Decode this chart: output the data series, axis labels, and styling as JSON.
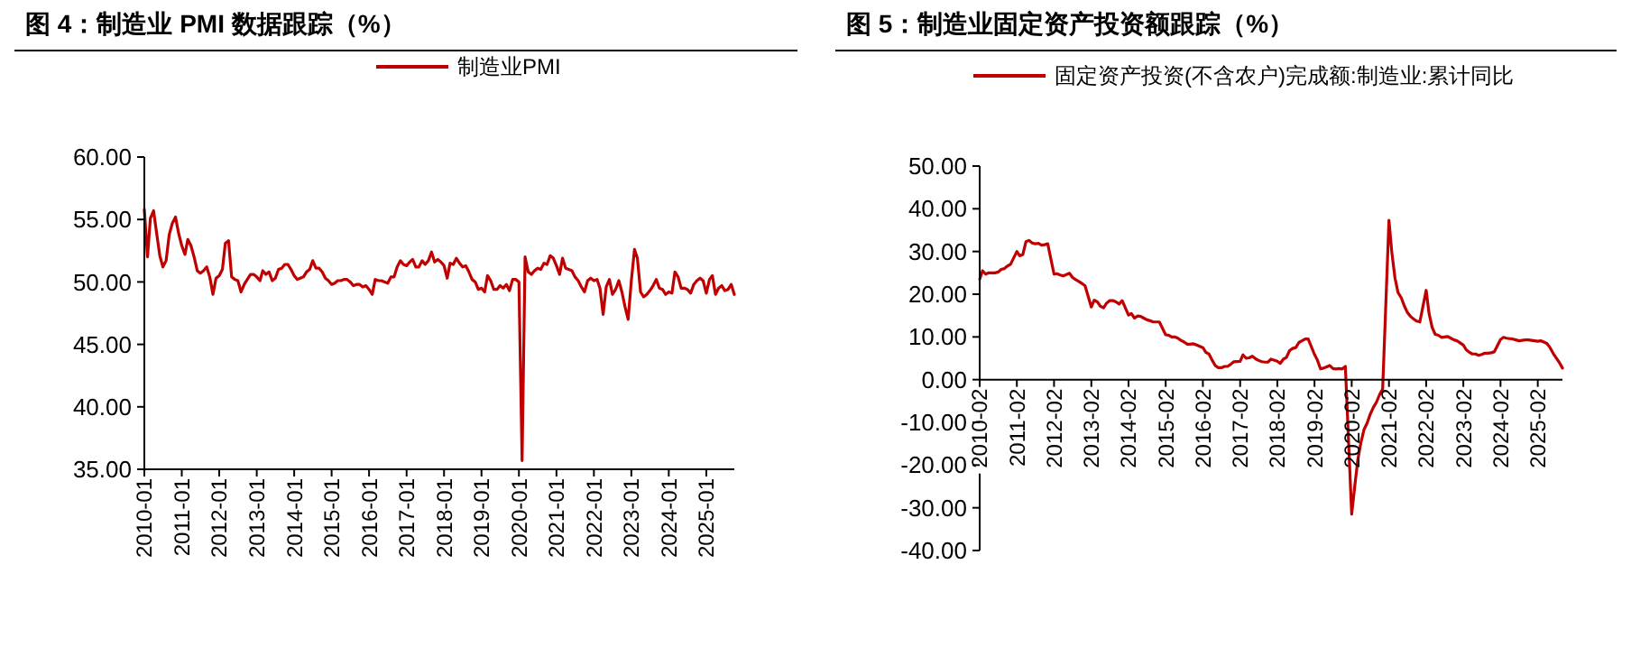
{
  "chart_data": [
    {
      "type": "line",
      "title": "图 4：制造业 PMI 数据跟踪（%）",
      "legend": "top",
      "grid": false,
      "xlim": [
        "2010-01",
        "2025-10"
      ],
      "ylim": [
        35,
        60
      ],
      "yticks": [
        {
          "value": 35,
          "label": "35.00"
        },
        {
          "value": 40,
          "label": "40.00"
        },
        {
          "value": 45,
          "label": "45.00"
        },
        {
          "value": 50,
          "label": "50.00"
        },
        {
          "value": 55,
          "label": "55.00"
        },
        {
          "value": 60,
          "label": "60.00"
        }
      ],
      "xticks": [
        "2010-01",
        "2011-01",
        "2012-01",
        "2013-01",
        "2014-01",
        "2015-01",
        "2016-01",
        "2017-01",
        "2018-01",
        "2019-01",
        "2020-01",
        "2021-01",
        "2022-01",
        "2023-01",
        "2024-01",
        "2025-01"
      ],
      "x": [
        "2010-01",
        "2010-02",
        "2010-03",
        "2010-04",
        "2010-05",
        "2010-06",
        "2010-07",
        "2010-08",
        "2010-09",
        "2010-10",
        "2010-11",
        "2010-12",
        "2011-01",
        "2011-02",
        "2011-03",
        "2011-04",
        "2011-05",
        "2011-06",
        "2011-07",
        "2011-08",
        "2011-09",
        "2011-10",
        "2011-11",
        "2011-12",
        "2012-01",
        "2012-02",
        "2012-03",
        "2012-04",
        "2012-05",
        "2012-06",
        "2012-07",
        "2012-08",
        "2012-09",
        "2012-10",
        "2012-11",
        "2012-12",
        "2013-01",
        "2013-02",
        "2013-03",
        "2013-04",
        "2013-05",
        "2013-06",
        "2013-07",
        "2013-08",
        "2013-09",
        "2013-10",
        "2013-11",
        "2013-12",
        "2014-01",
        "2014-02",
        "2014-03",
        "2014-04",
        "2014-05",
        "2014-06",
        "2014-07",
        "2014-08",
        "2014-09",
        "2014-10",
        "2014-11",
        "2014-12",
        "2015-01",
        "2015-02",
        "2015-03",
        "2015-04",
        "2015-05",
        "2015-06",
        "2015-07",
        "2015-08",
        "2015-09",
        "2015-10",
        "2015-11",
        "2015-12",
        "2016-01",
        "2016-02",
        "2016-03",
        "2016-04",
        "2016-05",
        "2016-06",
        "2016-07",
        "2016-08",
        "2016-09",
        "2016-10",
        "2016-11",
        "2016-12",
        "2017-01",
        "2017-02",
        "2017-03",
        "2017-04",
        "2017-05",
        "2017-06",
        "2017-07",
        "2017-08",
        "2017-09",
        "2017-10",
        "2017-11",
        "2017-12",
        "2018-01",
        "2018-02",
        "2018-03",
        "2018-04",
        "2018-05",
        "2018-06",
        "2018-07",
        "2018-08",
        "2018-09",
        "2018-10",
        "2018-11",
        "2018-12",
        "2019-01",
        "2019-02",
        "2019-03",
        "2019-04",
        "2019-05",
        "2019-06",
        "2019-07",
        "2019-08",
        "2019-09",
        "2019-10",
        "2019-11",
        "2019-12",
        "2020-01",
        "2020-02",
        "2020-03",
        "2020-04",
        "2020-05",
        "2020-06",
        "2020-07",
        "2020-08",
        "2020-09",
        "2020-10",
        "2020-11",
        "2020-12",
        "2021-01",
        "2021-02",
        "2021-03",
        "2021-04",
        "2021-05",
        "2021-06",
        "2021-07",
        "2021-08",
        "2021-09",
        "2021-10",
        "2021-11",
        "2021-12",
        "2022-01",
        "2022-02",
        "2022-03",
        "2022-04",
        "2022-05",
        "2022-06",
        "2022-07",
        "2022-08",
        "2022-09",
        "2022-10",
        "2022-11",
        "2022-12",
        "2023-01",
        "2023-02",
        "2023-03",
        "2023-04",
        "2023-05",
        "2023-06",
        "2023-07",
        "2023-08",
        "2023-09",
        "2023-10",
        "2023-11",
        "2023-12",
        "2024-01",
        "2024-02",
        "2024-03",
        "2024-04",
        "2024-05",
        "2024-06",
        "2024-07",
        "2024-08",
        "2024-09",
        "2024-10",
        "2024-11",
        "2024-12",
        "2025-01",
        "2025-02",
        "2025-03",
        "2025-04",
        "2025-05",
        "2025-06",
        "2025-07",
        "2025-08",
        "2025-09",
        "2025-10"
      ],
      "series": [
        {
          "name": "制造业PMI",
          "color": "#c00000",
          "values": [
            55.8,
            52.0,
            55.1,
            55.7,
            53.9,
            52.1,
            51.2,
            51.7,
            53.8,
            54.7,
            55.2,
            53.9,
            52.9,
            52.2,
            53.4,
            52.9,
            52.0,
            50.9,
            50.7,
            50.9,
            51.2,
            50.4,
            49.0,
            50.3,
            50.5,
            51.0,
            53.1,
            53.3,
            50.4,
            50.2,
            50.1,
            49.2,
            49.8,
            50.2,
            50.6,
            50.6,
            50.4,
            50.1,
            50.9,
            50.6,
            50.8,
            50.1,
            50.3,
            51.0,
            51.1,
            51.4,
            51.4,
            51.0,
            50.5,
            50.2,
            50.3,
            50.4,
            50.8,
            51.0,
            51.7,
            51.1,
            51.1,
            50.8,
            50.3,
            50.1,
            49.8,
            49.9,
            50.1,
            50.1,
            50.2,
            50.2,
            50.0,
            49.7,
            49.8,
            49.8,
            49.6,
            49.7,
            49.4,
            49.0,
            50.2,
            50.1,
            50.1,
            50.0,
            49.9,
            50.4,
            50.4,
            51.2,
            51.7,
            51.4,
            51.3,
            51.6,
            51.8,
            51.2,
            51.2,
            51.7,
            51.4,
            51.7,
            52.4,
            51.6,
            51.8,
            51.6,
            51.3,
            50.3,
            51.5,
            51.4,
            51.9,
            51.5,
            51.2,
            51.3,
            50.8,
            50.2,
            50.0,
            49.4,
            49.5,
            49.2,
            50.5,
            50.1,
            49.4,
            49.4,
            49.7,
            49.5,
            49.8,
            49.3,
            50.2,
            50.2,
            50.0,
            35.7,
            52.0,
            50.8,
            50.6,
            50.9,
            51.1,
            51.0,
            51.5,
            51.4,
            52.1,
            51.9,
            51.3,
            50.6,
            51.9,
            51.1,
            51.0,
            50.9,
            50.4,
            50.1,
            49.6,
            49.2,
            50.1,
            50.3,
            50.1,
            50.2,
            49.5,
            47.4,
            49.6,
            50.2,
            49.0,
            49.4,
            50.1,
            49.2,
            48.0,
            47.0,
            50.1,
            52.6,
            51.9,
            49.2,
            48.8,
            49.0,
            49.3,
            49.7,
            50.2,
            49.5,
            49.4,
            49.0,
            49.2,
            49.1,
            50.8,
            50.4,
            49.5,
            49.5,
            49.4,
            49.1,
            49.8,
            50.1,
            50.3,
            50.1,
            49.1,
            50.2,
            50.5,
            49.0,
            49.5,
            49.7,
            49.3,
            49.4,
            49.8,
            49.0
          ]
        }
      ]
    },
    {
      "type": "line",
      "title": "图 5：制造业固定资产投资额跟踪（%）",
      "legend": "top",
      "xlim": [
        "2010-02",
        "2025-10"
      ],
      "ylim": [
        -40,
        50
      ],
      "yticks": [
        {
          "value": -40,
          "label": "-40.00"
        },
        {
          "value": -30,
          "label": "-30.00"
        },
        {
          "value": -20,
          "label": "-20.00"
        },
        {
          "value": -10,
          "label": "-10.00"
        },
        {
          "value": 0,
          "label": "0.00"
        },
        {
          "value": 10,
          "label": "10.00"
        },
        {
          "value": 20,
          "label": "20.00"
        },
        {
          "value": 30,
          "label": "30.00"
        },
        {
          "value": 40,
          "label": "40.00"
        },
        {
          "value": 50,
          "label": "50.00"
        }
      ],
      "xticks": [
        "2010-02",
        "2011-02",
        "2012-02",
        "2013-02",
        "2014-02",
        "2015-02",
        "2016-02",
        "2017-02",
        "2018-02",
        "2019-02",
        "2020-02",
        "2021-02",
        "2022-02",
        "2023-02",
        "2024-02",
        "2025-02"
      ],
      "x": [
        "2010-02",
        "2010-03",
        "2010-04",
        "2010-05",
        "2010-06",
        "2010-07",
        "2010-08",
        "2010-09",
        "2010-10",
        "2010-11",
        "2010-12",
        "2011-02",
        "2011-03",
        "2011-04",
        "2011-05",
        "2011-06",
        "2011-07",
        "2011-08",
        "2011-09",
        "2011-10",
        "2011-11",
        "2011-12",
        "2012-02",
        "2012-03",
        "2012-04",
        "2012-05",
        "2012-06",
        "2012-07",
        "2012-08",
        "2012-09",
        "2012-10",
        "2012-11",
        "2012-12",
        "2013-02",
        "2013-03",
        "2013-04",
        "2013-05",
        "2013-06",
        "2013-07",
        "2013-08",
        "2013-09",
        "2013-10",
        "2013-11",
        "2013-12",
        "2014-02",
        "2014-03",
        "2014-04",
        "2014-05",
        "2014-06",
        "2014-07",
        "2014-08",
        "2014-09",
        "2014-10",
        "2014-11",
        "2014-12",
        "2015-02",
        "2015-03",
        "2015-04",
        "2015-05",
        "2015-06",
        "2015-07",
        "2015-08",
        "2015-09",
        "2015-10",
        "2015-11",
        "2015-12",
        "2016-02",
        "2016-03",
        "2016-04",
        "2016-05",
        "2016-06",
        "2016-07",
        "2016-08",
        "2016-09",
        "2016-10",
        "2016-11",
        "2016-12",
        "2017-02",
        "2017-03",
        "2017-04",
        "2017-05",
        "2017-06",
        "2017-07",
        "2017-08",
        "2017-09",
        "2017-10",
        "2017-11",
        "2017-12",
        "2018-02",
        "2018-03",
        "2018-04",
        "2018-05",
        "2018-06",
        "2018-07",
        "2018-08",
        "2018-09",
        "2018-10",
        "2018-11",
        "2018-12",
        "2019-02",
        "2019-03",
        "2019-04",
        "2019-05",
        "2019-06",
        "2019-07",
        "2019-08",
        "2019-09",
        "2019-10",
        "2019-11",
        "2019-12",
        "2020-02",
        "2020-03",
        "2020-04",
        "2020-05",
        "2020-06",
        "2020-07",
        "2020-08",
        "2020-09",
        "2020-10",
        "2020-11",
        "2020-12",
        "2021-02",
        "2021-03",
        "2021-04",
        "2021-05",
        "2021-06",
        "2021-07",
        "2021-08",
        "2021-09",
        "2021-10",
        "2021-11",
        "2021-12",
        "2022-02",
        "2022-03",
        "2022-04",
        "2022-05",
        "2022-06",
        "2022-07",
        "2022-08",
        "2022-09",
        "2022-10",
        "2022-11",
        "2022-12",
        "2023-02",
        "2023-03",
        "2023-04",
        "2023-05",
        "2023-06",
        "2023-07",
        "2023-08",
        "2023-09",
        "2023-10",
        "2023-11",
        "2023-12",
        "2024-02",
        "2024-03",
        "2024-04",
        "2024-05",
        "2024-06",
        "2024-07",
        "2024-08",
        "2024-09",
        "2024-10",
        "2024-11",
        "2024-12",
        "2025-02",
        "2025-03",
        "2025-04",
        "2025-05",
        "2025-06",
        "2025-07",
        "2025-08",
        "2025-09",
        "2025-10"
      ],
      "series": [
        {
          "name": "固定资产投资(不含农户)完成额:制造业:累计同比",
          "color": "#c00000",
          "values": [
            23.5,
            25.5,
            24.7,
            25.0,
            25.0,
            25.0,
            25.2,
            25.8,
            26.0,
            26.6,
            27.0,
            30.0,
            29.0,
            29.3,
            32.3,
            32.6,
            32.0,
            31.8,
            31.9,
            31.5,
            31.6,
            31.8,
            24.7,
            24.8,
            24.5,
            24.3,
            24.6,
            24.9,
            23.9,
            23.4,
            23.0,
            22.5,
            22.0,
            17.0,
            18.6,
            18.2,
            17.2,
            16.8,
            17.9,
            18.5,
            18.5,
            18.2,
            17.7,
            18.5,
            15.1,
            15.5,
            14.4,
            14.9,
            14.8,
            14.4,
            14.0,
            13.8,
            13.5,
            13.5,
            13.5,
            10.5,
            10.4,
            10.0,
            10.0,
            9.7,
            9.2,
            8.8,
            8.3,
            8.3,
            8.4,
            8.1,
            7.5,
            6.4,
            6.0,
            4.6,
            3.3,
            2.8,
            2.8,
            3.1,
            3.1,
            3.6,
            4.2,
            4.3,
            5.8,
            5.0,
            5.1,
            5.5,
            4.9,
            4.5,
            4.2,
            4.1,
            4.1,
            4.8,
            4.3,
            3.8,
            4.8,
            5.2,
            6.8,
            7.3,
            7.5,
            8.7,
            9.1,
            9.5,
            9.5,
            5.9,
            4.6,
            2.5,
            2.7,
            3.0,
            3.3,
            2.6,
            2.5,
            2.6,
            2.5,
            3.1,
            -31.5,
            -25.2,
            -18.8,
            -14.8,
            -11.7,
            -10.2,
            -8.1,
            -6.5,
            -5.3,
            -3.5,
            -2.2,
            37.3,
            29.8,
            23.8,
            20.4,
            19.2,
            17.3,
            15.7,
            14.8,
            14.2,
            13.7,
            13.5,
            20.9,
            15.6,
            12.2,
            10.6,
            10.4,
            9.9,
            10.0,
            10.1,
            9.7,
            9.3,
            9.1,
            8.1,
            7.0,
            6.4,
            6.0,
            6.0,
            5.7,
            5.9,
            6.2,
            6.2,
            6.3,
            6.5,
            9.4,
            9.9,
            9.7,
            9.6,
            9.5,
            9.3,
            9.1,
            9.2,
            9.3,
            9.3,
            9.2,
            9.0,
            9.1,
            8.8,
            8.5,
            7.5,
            6.2,
            5.1,
            4.0,
            2.7
          ]
        }
      ]
    }
  ]
}
